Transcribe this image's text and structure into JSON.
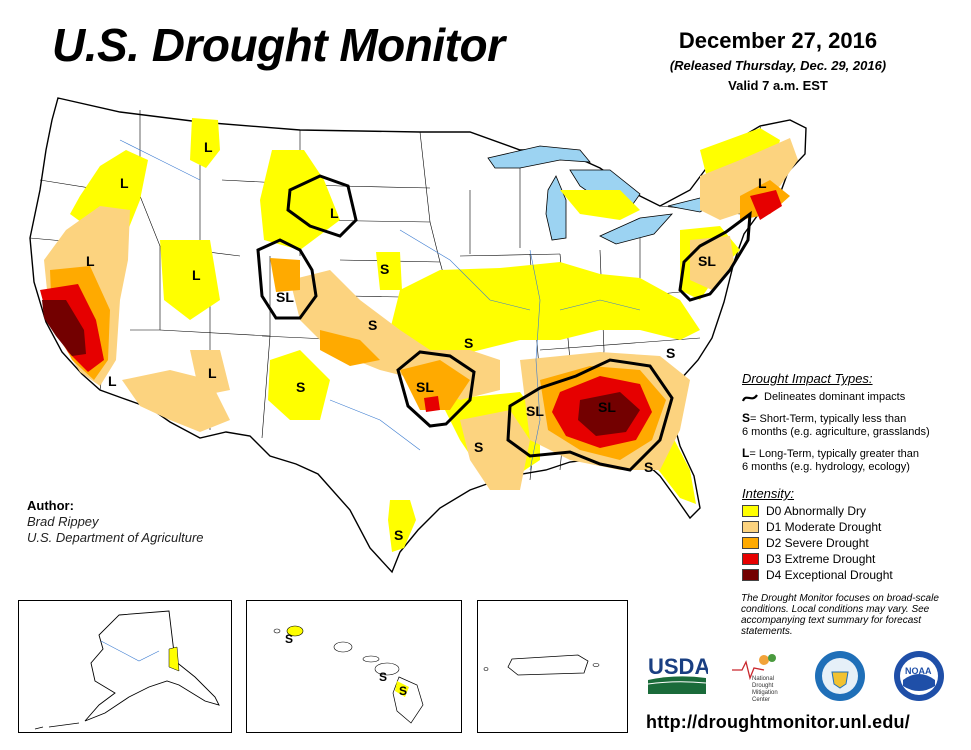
{
  "header": {
    "title": "U.S. Drought Monitor",
    "date": "December 27, 2016",
    "released": "(Released Thursday, Dec. 29, 2016)",
    "valid": "Valid 7 a.m. EST"
  },
  "author": {
    "label": "Author:",
    "name": "Brad Rippey",
    "org": "U.S. Department of Agriculture"
  },
  "impact_types": {
    "heading": "Drought Impact Types:",
    "line_text": "Delineates dominant impacts",
    "s_key": "S",
    "s_text_1": "= Short-Term, typically less than",
    "s_text_2": "6 months (e.g. agriculture, grasslands)",
    "l_key": "L",
    "l_text_1": "= Long-Term, typically greater than",
    "l_text_2": "6 months (e.g. hydrology, ecology)"
  },
  "intensity": {
    "heading": "Intensity:",
    "items": [
      {
        "label": "D0 Abnormally Dry",
        "color": "#ffff00"
      },
      {
        "label": "D1 Moderate Drought",
        "color": "#fcd37f"
      },
      {
        "label": "D2 Severe Drought",
        "color": "#ffaa00"
      },
      {
        "label": "D3 Extreme Drought",
        "color": "#e60000"
      },
      {
        "label": "D4 Exceptional Drought",
        "color": "#730000"
      }
    ]
  },
  "note": "The Drought Monitor focuses on broad-scale conditions. Local conditions may vary. See accompanying text summary for forecast statements.",
  "map_labels": {
    "L": "L",
    "S": "S",
    "SL": "SL"
  },
  "logos": {
    "usda": "USDA",
    "ndmc_1": "National",
    "ndmc_2": "Drought",
    "ndmc_3": "Mitigation",
    "ndmc_4": "Center",
    "noaa": "NOAA"
  },
  "url": "http://droughtmonitor.unl.edu/"
}
